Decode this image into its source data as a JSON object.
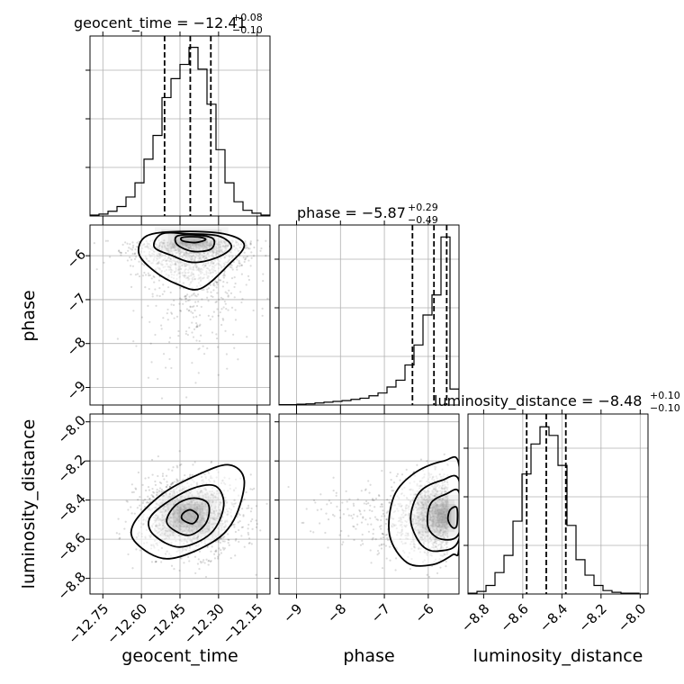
{
  "chart_data": {
    "type": "corner",
    "parameters": [
      "geocent_time",
      "phase",
      "luminosity_distance"
    ],
    "titles": [
      {
        "name": "geocent_time",
        "value": "−12.41",
        "plus": "+0.08",
        "minus": "−0.10"
      },
      {
        "name": "phase",
        "value": "−5.87",
        "plus": "+0.29",
        "minus": "−0.49"
      },
      {
        "name": "luminosity_distance",
        "value": "−8.48",
        "plus": "+0.10",
        "minus": "−0.10"
      }
    ],
    "axis_labels": {
      "x": [
        "geocent_time",
        "phase",
        "luminosity_distance"
      ],
      "y": [
        "phase",
        "luminosity_distance"
      ]
    },
    "ranges": {
      "geocent_time": [
        -12.8,
        -12.1
      ],
      "phase": [
        -9.4,
        -5.3
      ],
      "luminosity_distance": [
        -8.88,
        -7.96
      ]
    },
    "ticks": {
      "geocent_time": [
        {
          "v": -12.75,
          "t": "−12.75"
        },
        {
          "v": -12.6,
          "t": "−12.60"
        },
        {
          "v": -12.45,
          "t": "−12.45"
        },
        {
          "v": -12.3,
          "t": "−12.30"
        },
        {
          "v": -12.15,
          "t": "−12.15"
        }
      ],
      "phase": [
        {
          "v": -9,
          "t": "−9"
        },
        {
          "v": -8,
          "t": "−8"
        },
        {
          "v": -7,
          "t": "−7"
        },
        {
          "v": -6,
          "t": "−6"
        }
      ],
      "luminosity_distance": [
        {
          "v": -8.8,
          "t": "−8.8"
        },
        {
          "v": -8.6,
          "t": "−8.6"
        },
        {
          "v": -8.4,
          "t": "−8.4"
        },
        {
          "v": -8.2,
          "t": "−8.2"
        },
        {
          "v": -8.0,
          "t": "−8.0"
        }
      ]
    },
    "quantiles": {
      "geocent_time": [
        -12.51,
        -12.41,
        -12.33
      ],
      "phase": [
        -6.36,
        -5.87,
        -5.58
      ],
      "luminosity_distance": [
        -8.58,
        -8.48,
        -8.38
      ]
    },
    "histograms": {
      "geocent_time": {
        "edges": [
          -12.8,
          -12.765,
          -12.73,
          -12.695,
          -12.66,
          -12.625,
          -12.59,
          -12.555,
          -12.52,
          -12.485,
          -12.45,
          -12.415,
          -12.38,
          -12.345,
          -12.31,
          -12.275,
          -12.24,
          -12.205,
          -12.17,
          -12.135,
          -12.1
        ],
        "counts": [
          1,
          2,
          5,
          10,
          20,
          35,
          60,
          85,
          125,
          145,
          160,
          178,
          155,
          118,
          70,
          35,
          15,
          6,
          3,
          1
        ],
        "ymax": 190
      },
      "phase": {
        "edges": [
          -9.4,
          -9.195,
          -8.99,
          -8.785,
          -8.58,
          -8.375,
          -8.17,
          -7.965,
          -7.76,
          -7.555,
          -7.35,
          -7.145,
          -6.94,
          -6.735,
          -6.53,
          -6.325,
          -6.12,
          -5.915,
          -5.71,
          -5.505,
          -5.3
        ],
        "counts": [
          1,
          1,
          2,
          3,
          5,
          7,
          9,
          11,
          14,
          17,
          23,
          30,
          45,
          62,
          100,
          150,
          225,
          275,
          420,
          40
        ],
        "ymax": 450
      },
      "luminosity_distance": {
        "edges": [
          -8.88,
          -8.834,
          -8.788,
          -8.742,
          -8.696,
          -8.65,
          -8.604,
          -8.558,
          -8.512,
          -8.466,
          -8.42,
          -8.374,
          -8.328,
          -8.282,
          -8.236,
          -8.19,
          -8.144,
          -8.098,
          -8.052,
          -8.006,
          -7.96
        ],
        "counts": [
          1,
          3,
          10,
          25,
          45,
          85,
          140,
          175,
          195,
          185,
          150,
          80,
          40,
          22,
          10,
          4,
          2,
          1,
          1,
          0
        ],
        "ymax": 210
      }
    },
    "pairs": [
      {
        "x": "geocent_time",
        "y": "phase",
        "mean": [
          -12.4,
          -6.35
        ],
        "sd": [
          0.11,
          0.6
        ],
        "mode": [
          -12.41,
          -5.65
        ],
        "contours": [
          [
            [
              -12.58,
              -5.55
            ],
            [
              -12.45,
              -5.45
            ],
            [
              -12.28,
              -5.5
            ],
            [
              -12.2,
              -5.75
            ],
            [
              -12.26,
              -6.2
            ],
            [
              -12.37,
              -6.75
            ],
            [
              -12.46,
              -6.65
            ],
            [
              -12.55,
              -6.35
            ],
            [
              -12.61,
              -5.95
            ]
          ],
          [
            [
              -12.52,
              -5.5
            ],
            [
              -12.42,
              -5.5
            ],
            [
              -12.3,
              -5.55
            ],
            [
              -12.25,
              -5.8
            ],
            [
              -12.31,
              -6.05
            ],
            [
              -12.4,
              -6.15
            ],
            [
              -12.48,
              -6.0
            ],
            [
              -12.55,
              -5.8
            ]
          ],
          [
            [
              -12.46,
              -5.55
            ],
            [
              -12.38,
              -5.53
            ],
            [
              -12.32,
              -5.62
            ],
            [
              -12.33,
              -5.85
            ],
            [
              -12.4,
              -5.9
            ],
            [
              -12.46,
              -5.75
            ]
          ],
          [
            [
              -12.44,
              -5.58
            ],
            [
              -12.38,
              -5.57
            ],
            [
              -12.35,
              -5.63
            ],
            [
              -12.39,
              -5.7
            ],
            [
              -12.44,
              -5.66
            ]
          ]
        ]
      },
      {
        "x": "geocent_time",
        "y": "luminosity_distance",
        "mean": [
          -12.41,
          -8.48
        ],
        "sd": [
          0.1,
          0.1
        ],
        "mode": [
          -12.42,
          -8.48
        ],
        "contours": [
          [
            [
              -12.62,
              -8.62
            ],
            [
              -12.5,
              -8.7
            ],
            [
              -12.33,
              -8.62
            ],
            [
              -12.24,
              -8.5
            ],
            [
              -12.2,
              -8.3
            ],
            [
              -12.26,
              -8.22
            ],
            [
              -12.38,
              -8.27
            ],
            [
              -12.52,
              -8.37
            ],
            [
              -12.63,
              -8.52
            ]
          ],
          [
            [
              -12.55,
              -8.58
            ],
            [
              -12.45,
              -8.64
            ],
            [
              -12.33,
              -8.57
            ],
            [
              -12.28,
              -8.43
            ],
            [
              -12.31,
              -8.33
            ],
            [
              -12.4,
              -8.34
            ],
            [
              -12.51,
              -8.42
            ],
            [
              -12.57,
              -8.5
            ]
          ],
          [
            [
              -12.5,
              -8.52
            ],
            [
              -12.42,
              -8.58
            ],
            [
              -12.35,
              -8.52
            ],
            [
              -12.34,
              -8.42
            ],
            [
              -12.4,
              -8.39
            ],
            [
              -12.47,
              -8.43
            ]
          ],
          [
            [
              -12.44,
              -8.5
            ],
            [
              -12.4,
              -8.52
            ],
            [
              -12.38,
              -8.48
            ],
            [
              -12.41,
              -8.45
            ],
            [
              -12.44,
              -8.47
            ]
          ]
        ]
      },
      {
        "x": "phase",
        "y": "luminosity_distance",
        "mean": [
          -6.0,
          -8.48
        ],
        "sd": [
          0.65,
          0.1
        ],
        "mode": [
          -5.55,
          -8.48
        ],
        "contours": [
          [
            [
              -5.3,
              -8.22
            ],
            [
              -5.65,
              -8.2
            ],
            [
              -6.3,
              -8.26
            ],
            [
              -6.78,
              -8.38
            ],
            [
              -6.88,
              -8.58
            ],
            [
              -6.48,
              -8.72
            ],
            [
              -5.9,
              -8.73
            ],
            [
              -5.45,
              -8.68
            ],
            [
              -5.3,
              -8.64
            ]
          ],
          [
            [
              -5.3,
              -8.3
            ],
            [
              -5.7,
              -8.3
            ],
            [
              -6.2,
              -8.36
            ],
            [
              -6.4,
              -8.5
            ],
            [
              -6.15,
              -8.63
            ],
            [
              -5.75,
              -8.66
            ],
            [
              -5.3,
              -8.6
            ]
          ],
          [
            [
              -5.3,
              -8.36
            ],
            [
              -5.6,
              -8.37
            ],
            [
              -5.95,
              -8.42
            ],
            [
              -6.0,
              -8.54
            ],
            [
              -5.7,
              -8.6
            ],
            [
              -5.3,
              -8.57
            ]
          ],
          [
            [
              -5.35,
              -8.44
            ],
            [
              -5.5,
              -8.45
            ],
            [
              -5.55,
              -8.5
            ],
            [
              -5.45,
              -8.54
            ],
            [
              -5.35,
              -8.53
            ]
          ]
        ]
      }
    ],
    "grid": true,
    "colors": {
      "line": "#000000",
      "grid": "#b0b0b0",
      "scatter": "#000000"
    }
  }
}
